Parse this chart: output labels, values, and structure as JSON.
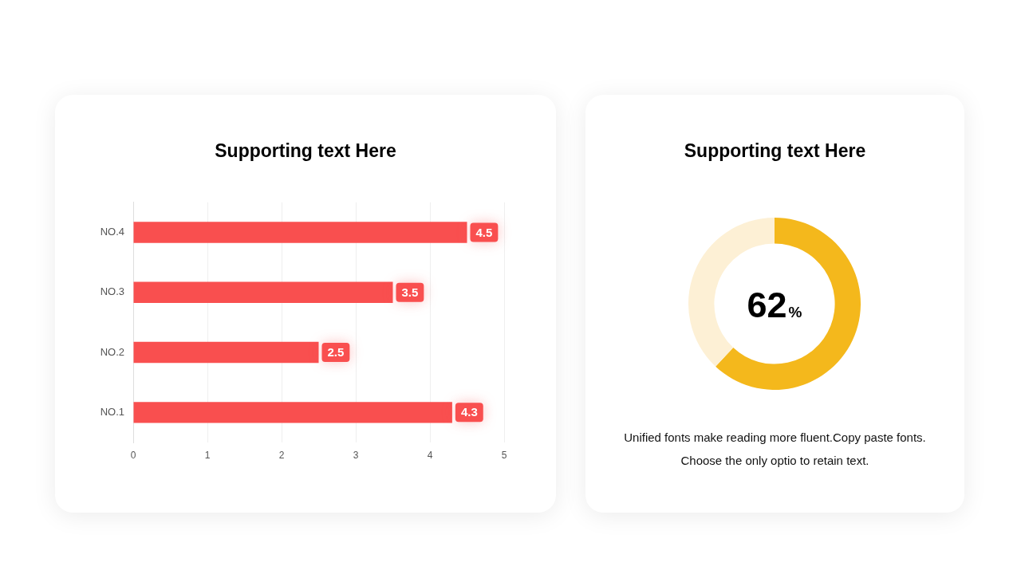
{
  "chart_data": [
    {
      "type": "bar",
      "title": "Supporting text Here",
      "orientation": "horizontal",
      "categories": [
        "NO.4",
        "NO.3",
        "NO.2",
        "NO.1"
      ],
      "values": [
        4.5,
        3.5,
        2.5,
        4.3
      ],
      "color": "#f94f4f",
      "xlim": [
        0,
        5
      ],
      "xticks": [
        0,
        1,
        2,
        3,
        4,
        5
      ],
      "grid": "x",
      "data_labels": true
    },
    {
      "type": "donut",
      "title": "Supporting text Here",
      "categories": [
        null,
        null
      ],
      "values": [
        62,
        38
      ],
      "colors": [
        "#f4b81c",
        "#fdf0d5"
      ],
      "value_labels": [
        "62%",
        null
      ],
      "annotations": [
        "Unified fonts make reading more fluent.Copy paste fonts.",
        "Choose the only optio to retain text."
      ]
    }
  ]
}
